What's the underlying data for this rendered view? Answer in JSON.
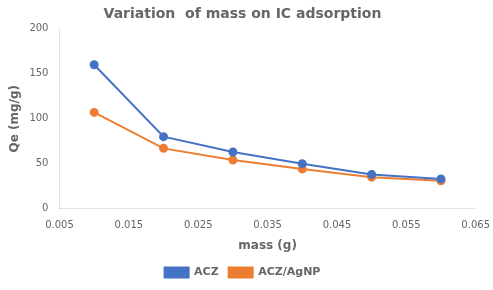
{
  "chart_data": {
    "type": "line",
    "title": "Variation  of mass on IC adsorption",
    "xlabel": "mass (g)",
    "ylabel": "Qe (mg/g)",
    "x": [
      0.01,
      0.02,
      0.03,
      0.04,
      0.05,
      0.06
    ],
    "series": [
      {
        "name": "ACZ",
        "color": "#4472C4",
        "marker": "circle",
        "values": [
          160,
          80,
          63,
          50,
          38,
          33
        ]
      },
      {
        "name": "ACZ/AgNP",
        "color": "#ED7D31",
        "marker": "circle",
        "values": [
          107,
          67,
          54,
          44,
          35,
          31
        ]
      }
    ],
    "xlim": [
      0.005,
      0.065
    ],
    "xticks": [
      0.005,
      0.015,
      0.025,
      0.035,
      0.045,
      0.055,
      0.065
    ],
    "ylim": [
      0,
      200
    ],
    "yticks": [
      0,
      50,
      100,
      150,
      200
    ],
    "grid": false,
    "legend": "bottom"
  }
}
